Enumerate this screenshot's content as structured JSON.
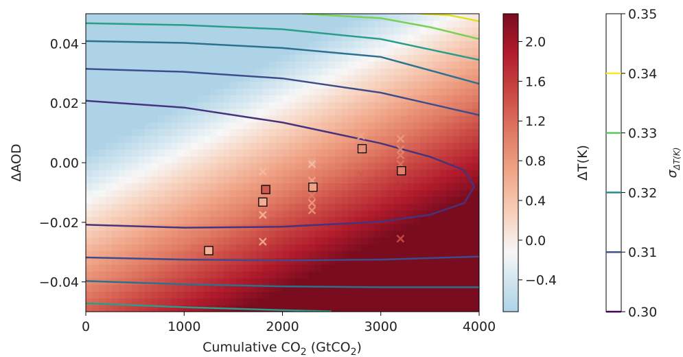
{
  "chart_data": {
    "type": "heatmap",
    "title": "",
    "xlabel": "Cumulative CO",
    "xlabel_sub": "2",
    "xlabel_mid": " (GtCO",
    "xlabel_sub2": "2",
    "xlabel_end": ")",
    "ylabel": "ΔAOD",
    "xlim": [
      0,
      4000
    ],
    "ylim": [
      -0.05,
      0.05
    ],
    "xticks": [
      0,
      1000,
      2000,
      3000,
      4000
    ],
    "xtick_labels": [
      "0",
      "1000",
      "2000",
      "3000",
      "4000"
    ],
    "yticks": [
      -0.04,
      -0.02,
      0.0,
      0.02,
      0.04
    ],
    "ytick_labels": [
      "−0.04",
      "−0.02",
      "0.00",
      "0.02",
      "0.04"
    ],
    "heatmap_field": {
      "variable": "ΔT(K)",
      "approx_model": "T = -0.6 + 0.00063*x - 38*y"
    },
    "colorbar_main": {
      "label": "ΔT(K)",
      "range": [
        -0.72,
        2.28
      ],
      "ticks": [
        -0.4,
        0.0,
        0.4,
        0.8,
        1.2,
        1.6,
        2.0
      ],
      "tick_labels": [
        "−0.4",
        "0.0",
        "0.4",
        "0.8",
        "1.2",
        "1.6",
        "2.0"
      ],
      "colormap": "RdBu_r"
    },
    "colorbar_sigma": {
      "label_main": "σ",
      "label_sub": "ΔT(K)",
      "range": [
        0.3,
        0.35
      ],
      "ticks": [
        0.3,
        0.31,
        0.32,
        0.33,
        0.34,
        0.35
      ],
      "tick_labels": [
        "0.30",
        "0.31",
        "0.32",
        "0.33",
        "0.34",
        "0.35"
      ],
      "line_colors": [
        "#440154",
        "#3b528b",
        "#21918c",
        "#5ec962",
        "#fde725"
      ]
    },
    "contours": [
      {
        "level": 0.31,
        "color": "#45337e",
        "points": [
          [
            0,
            0.0208
          ],
          [
            1000,
            0.0185
          ],
          [
            2000,
            0.0135
          ],
          [
            3000,
            0.0065
          ],
          [
            3500,
            0.002
          ],
          [
            3850,
            -0.0025
          ],
          [
            3950,
            -0.008
          ],
          [
            3850,
            -0.0135
          ],
          [
            3500,
            -0.0175
          ],
          [
            3000,
            -0.0198
          ],
          [
            2000,
            -0.0215
          ],
          [
            1000,
            -0.0218
          ],
          [
            0,
            -0.0208
          ]
        ]
      },
      {
        "level": 0.315,
        "color": "#3f4c8b",
        "points": [
          [
            0,
            0.0315
          ],
          [
            1000,
            0.0305
          ],
          [
            2000,
            0.0283
          ],
          [
            3000,
            0.0235
          ],
          [
            4000,
            0.016
          ]
        ]
      },
      {
        "level": 0.315,
        "color": "#3f4c8b",
        "points": [
          [
            0,
            -0.0318
          ],
          [
            1000,
            -0.0325
          ],
          [
            2000,
            -0.0328
          ],
          [
            3000,
            -0.0325
          ],
          [
            4000,
            -0.0315
          ]
        ]
      },
      {
        "level": 0.32,
        "color": "#2c718e",
        "points": [
          [
            0,
            0.0408
          ],
          [
            1000,
            0.0402
          ],
          [
            2000,
            0.0385
          ],
          [
            3000,
            0.0355
          ],
          [
            4000,
            0.0265
          ]
        ]
      },
      {
        "level": 0.32,
        "color": "#2c718e",
        "points": [
          [
            0,
            -0.0397
          ],
          [
            1000,
            -0.0408
          ],
          [
            2000,
            -0.0415
          ],
          [
            3000,
            -0.0418
          ],
          [
            4000,
            -0.0418
          ]
        ]
      },
      {
        "level": 0.325,
        "color": "#2a9d8a",
        "points": [
          [
            0,
            0.0468
          ],
          [
            1000,
            0.0462
          ],
          [
            2000,
            0.0448
          ],
          [
            3000,
            0.0415
          ],
          [
            4000,
            0.0345
          ]
        ]
      },
      {
        "level": 0.325,
        "color": "#2a9d8a",
        "points": [
          [
            0,
            -0.0472
          ],
          [
            1000,
            -0.0485
          ],
          [
            2000,
            -0.0495
          ],
          [
            2500,
            -0.0499
          ]
        ]
      },
      {
        "level": 0.335,
        "color": "#7ad151",
        "points": [
          [
            2200,
            0.05
          ],
          [
            3000,
            0.0485
          ],
          [
            3500,
            0.0455
          ],
          [
            4000,
            0.0415
          ]
        ]
      },
      {
        "level": 0.345,
        "color": "#dde318",
        "points": [
          [
            3400,
            0.05
          ],
          [
            3700,
            0.0495
          ],
          [
            4000,
            0.0475
          ]
        ]
      }
    ],
    "x_markers": [
      {
        "x": 1800,
        "y": -0.003,
        "value": 0.45
      },
      {
        "x": 1800,
        "y": -0.0175,
        "value": 0.5
      },
      {
        "x": 1800,
        "y": -0.0265,
        "value": 0.55
      },
      {
        "x": 2300,
        "y": 0.0005,
        "value": 0.7
      },
      {
        "x": 2300,
        "y": -0.0005,
        "value": 0.4
      },
      {
        "x": 2300,
        "y": -0.006,
        "value": 0.65
      },
      {
        "x": 2300,
        "y": -0.011,
        "value": 1.05
      },
      {
        "x": 2300,
        "y": -0.0135,
        "value": 0.75
      },
      {
        "x": 2300,
        "y": -0.016,
        "value": 0.8
      },
      {
        "x": 2800,
        "y": 0.009,
        "value": 0.7
      },
      {
        "x": 2800,
        "y": -0.004,
        "value": 1.35
      },
      {
        "x": 3200,
        "y": 0.008,
        "value": 0.75
      },
      {
        "x": 3200,
        "y": 0.0045,
        "value": 0.9
      },
      {
        "x": 3200,
        "y": 0.0025,
        "value": 1.0
      },
      {
        "x": 3200,
        "y": -0.0005,
        "value": 1.1
      },
      {
        "x": 3200,
        "y": -0.0075,
        "value": 1.7
      },
      {
        "x": 3200,
        "y": -0.0255,
        "value": 1.4
      }
    ],
    "square_markers": [
      {
        "x": 1250,
        "y": -0.0295,
        "value": 0.55
      },
      {
        "x": 1800,
        "y": -0.0132,
        "value": 0.6
      },
      {
        "x": 1830,
        "y": -0.009,
        "value": 1.35
      },
      {
        "x": 2310,
        "y": -0.0082,
        "value": 0.7
      },
      {
        "x": 2810,
        "y": 0.0047,
        "value": 0.9
      },
      {
        "x": 3210,
        "y": -0.0027,
        "value": 1.05
      }
    ]
  }
}
